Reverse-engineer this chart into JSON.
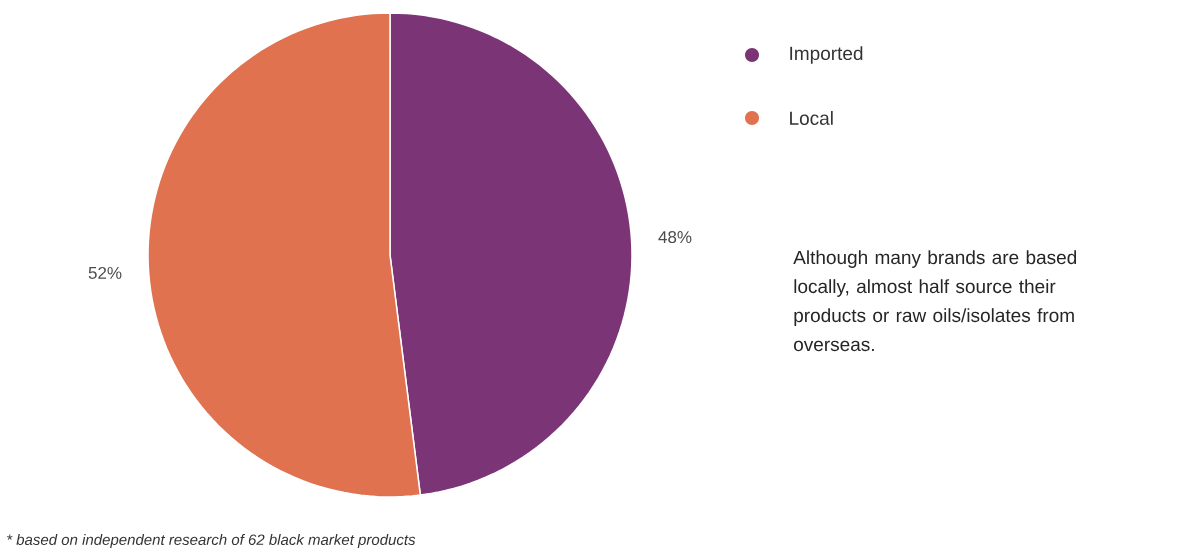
{
  "chart_data": {
    "type": "pie",
    "categories": [
      "Imported",
      "Local"
    ],
    "values": [
      48,
      52
    ],
    "colors": [
      "#7b3577",
      "#e07250"
    ],
    "value_labels": [
      "48%",
      "52%"
    ],
    "legend": "top right",
    "annotations": [
      "Although many brands are based locally, almost half source their products or raw oils/isolates from overseas.",
      "* based on independent research of 62 black market products"
    ]
  }
}
